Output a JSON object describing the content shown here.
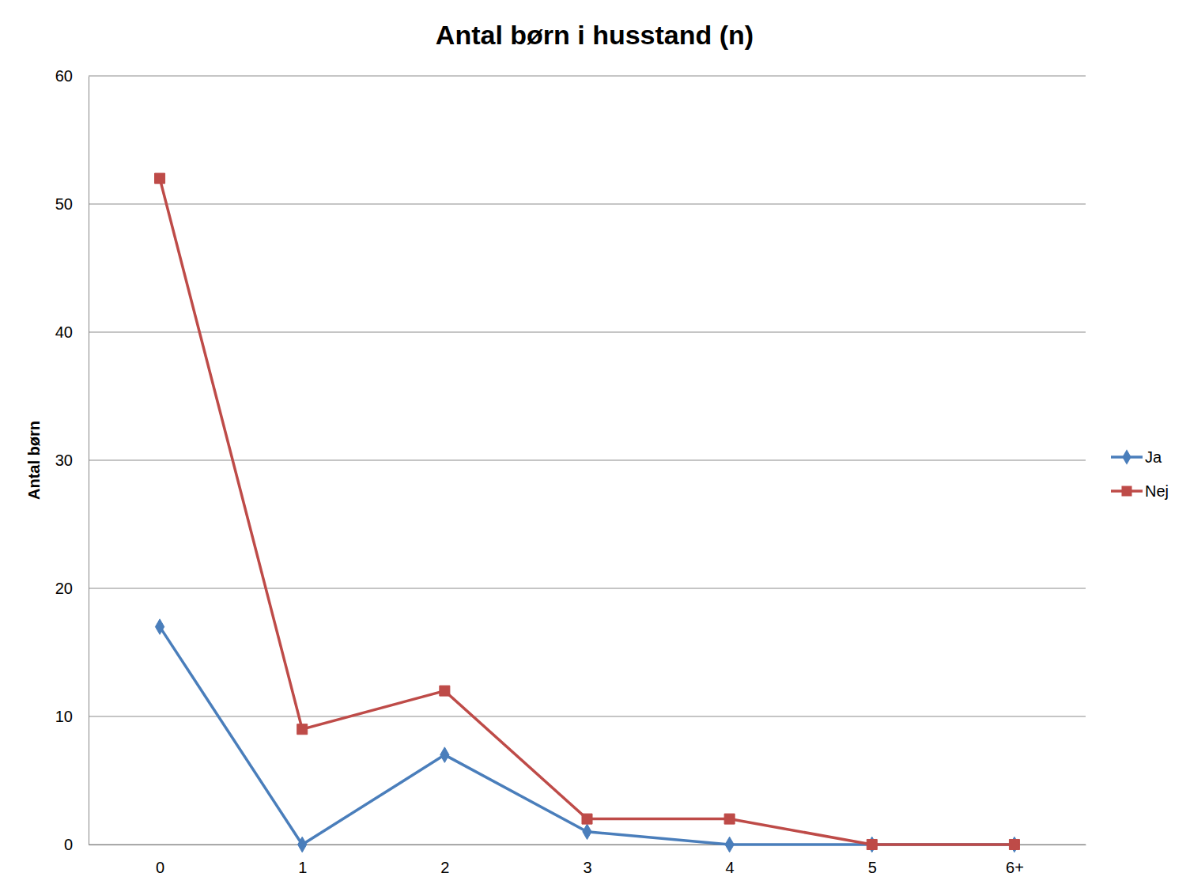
{
  "chart_data": {
    "type": "line",
    "title": "Antal børn i husstand (n)",
    "y_label": "Antal børn",
    "categories": [
      "0",
      "1",
      "2",
      "3",
      "4",
      "5",
      "6+"
    ],
    "series": [
      {
        "name": "Ja",
        "color": "#4a7ebb",
        "marker": "diamond",
        "line_style": "solid",
        "values": [
          17,
          0,
          7,
          1,
          0,
          0,
          0
        ]
      },
      {
        "name": "Nej",
        "color": "#be4b48",
        "marker": "square",
        "line_style": "solid",
        "values": [
          52,
          9,
          12,
          2,
          2,
          0,
          0
        ]
      }
    ],
    "ylim": [
      0,
      60
    ],
    "yticks": [
      0,
      10,
      20,
      30,
      40,
      50,
      60
    ],
    "grid": true,
    "legend": "right"
  }
}
